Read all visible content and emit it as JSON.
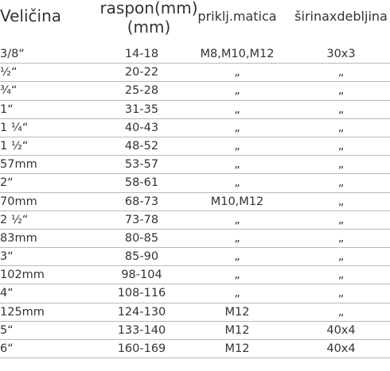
{
  "table": {
    "headers": [
      "Veličina",
      "raspon(mm)\n(mm)",
      "priklj.matica",
      "širinaxdebljina"
    ],
    "header_parts": {
      "col0": "Veličina",
      "col1_line1": "raspon(mm)",
      "col1_line2": "(mm)",
      "col2": "priklj.matica",
      "col3": "širinaxdebljina"
    },
    "rows": [
      [
        "3/8“",
        "14-18",
        "M8,M10,M12",
        "30x3"
      ],
      [
        "½“",
        "20-22",
        "„",
        "„"
      ],
      [
        "¾“",
        "25-28",
        "„",
        "„"
      ],
      [
        "1“",
        "31-35",
        "„",
        "„"
      ],
      [
        "1 ¼“",
        "40-43",
        "„",
        "„"
      ],
      [
        "1 ½“",
        "48-52",
        "„",
        "„"
      ],
      [
        "57mm",
        "53-57",
        "„",
        "„"
      ],
      [
        "2“",
        "58-61",
        "„",
        "„"
      ],
      [
        "70mm",
        "68-73",
        "M10,M12",
        "„"
      ],
      [
        "2 ½“",
        "73-78",
        "„",
        "„"
      ],
      [
        "83mm",
        "80-85",
        "„",
        "„"
      ],
      [
        "3“",
        "85-90",
        "„",
        "„"
      ],
      [
        "102mm",
        "98-104",
        "„",
        "„"
      ],
      [
        "4“",
        "108-116",
        "„",
        "„"
      ],
      [
        "125mm",
        "124-130",
        "M12",
        "„"
      ],
      [
        "5“",
        "133-140",
        "M12",
        "40x4"
      ],
      [
        "6“",
        "160-169",
        "M12",
        "40x4"
      ]
    ]
  }
}
